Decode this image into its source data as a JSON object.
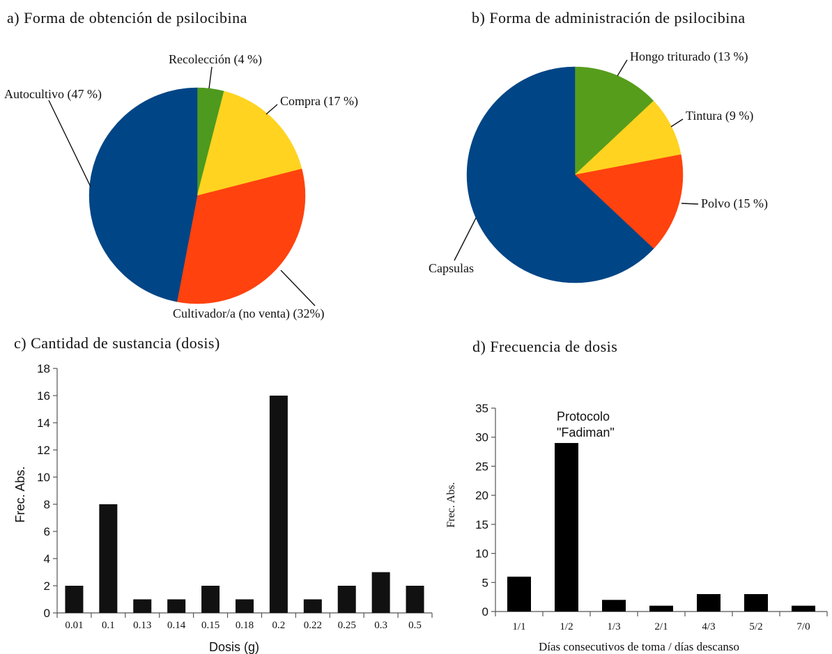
{
  "chart_data": [
    {
      "type": "pie",
      "panel": "a",
      "title": "a) Forma de obtención de psilocibina",
      "slices": [
        {
          "label": "Recolección (4 %)",
          "value": 4,
          "color": "#4e9a1e"
        },
        {
          "label": "Compra (17 %)",
          "value": 17,
          "color": "#ffd320"
        },
        {
          "label": "Cultivador/a (no venta) (32%)",
          "value": 32,
          "color": "#ff420e"
        },
        {
          "label": "Autocultivo (47 %)",
          "value": 47,
          "color": "#004586"
        }
      ]
    },
    {
      "type": "pie",
      "panel": "b",
      "title": "b) Forma de administración de psilocibina",
      "slices": [
        {
          "label": "Hongo triturado (13 %)",
          "value": 13,
          "color": "#579d1c"
        },
        {
          "label": "Tintura (9 %)",
          "value": 9,
          "color": "#ffd320"
        },
        {
          "label": "Polvo (15 %)",
          "value": 15,
          "color": "#ff420e"
        },
        {
          "label": "Capsulas",
          "value": 63,
          "color": "#004586"
        }
      ]
    },
    {
      "type": "bar",
      "panel": "c",
      "title": "c) Cantidad de sustancia (dosis)",
      "xlabel": "Dosis (g)",
      "ylabel": "Frec. Abs.",
      "categories": [
        "0.01",
        "0.1",
        "0.13",
        "0.14",
        "0.15",
        "0.18",
        "0.2",
        "0.22",
        "0.25",
        "0.3",
        "0.5"
      ],
      "values": [
        2,
        8,
        1,
        1,
        2,
        1,
        16,
        1,
        2,
        3,
        2
      ],
      "ylim": [
        0,
        18
      ],
      "yticks": [
        "0",
        "2",
        "4",
        "6",
        "8",
        "10",
        "12",
        "14",
        "16",
        "18"
      ],
      "bar_color": "#111111"
    },
    {
      "type": "bar",
      "panel": "d",
      "title": "d) Frecuencia de dosis",
      "xlabel": "Días consecutivos de toma / días descanso",
      "ylabel": "Frec. Abs.",
      "categories": [
        "1/1",
        "1/2",
        "1/3",
        "2/1",
        "4/3",
        "5/2",
        "7/0"
      ],
      "values": [
        6,
        29,
        2,
        1,
        3,
        3,
        1
      ],
      "ylim": [
        0,
        35
      ],
      "yticks": [
        "0",
        "5",
        "10",
        "15",
        "20",
        "25",
        "30",
        "35"
      ],
      "annotation": [
        "Protocolo",
        "\"Fadiman\""
      ],
      "bar_color": "#000000"
    }
  ]
}
